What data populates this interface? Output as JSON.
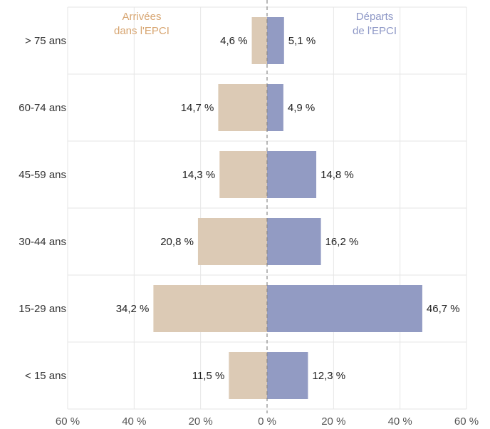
{
  "chart_data": {
    "type": "bar",
    "orientation": "horizontal-diverging",
    "categories": [
      "> 75 ans",
      "60-74 ans",
      "45-59 ans",
      "30-44 ans",
      "15-29 ans",
      "< 15 ans"
    ],
    "series": [
      {
        "name": "Arrivées dans l'EPCI",
        "side": "left",
        "color": "#DCCAB5",
        "values": [
          4.6,
          14.7,
          14.3,
          20.8,
          34.2,
          11.5
        ],
        "labels": [
          "4,6 %",
          "14,7 %",
          "14,3 %",
          "20,8 %",
          "34,2 %",
          "11,5 %"
        ]
      },
      {
        "name": "Départs de l'EPCI",
        "side": "right",
        "color": "#929BC3",
        "values": [
          5.1,
          4.9,
          14.8,
          16.2,
          46.7,
          12.3
        ],
        "labels": [
          "5,1 %",
          "4,9 %",
          "14,8 %",
          "16,2 %",
          "46,7 %",
          "12,3 %"
        ]
      }
    ],
    "xlim": [
      -60,
      60
    ],
    "xticks": [
      "60 %",
      "40 %",
      "20 %",
      "0 %",
      "20 %",
      "40 %",
      "60 %"
    ],
    "grid": true,
    "legend_placement": "top"
  },
  "legend": {
    "arrivals_line1": "Arrivées",
    "arrivals_line2": "dans l'EPCI",
    "departures_line1": "Départs",
    "departures_line2": "de l'EPCI",
    "arrivals_color": "#D7A571",
    "departures_color": "#8D97C6"
  }
}
